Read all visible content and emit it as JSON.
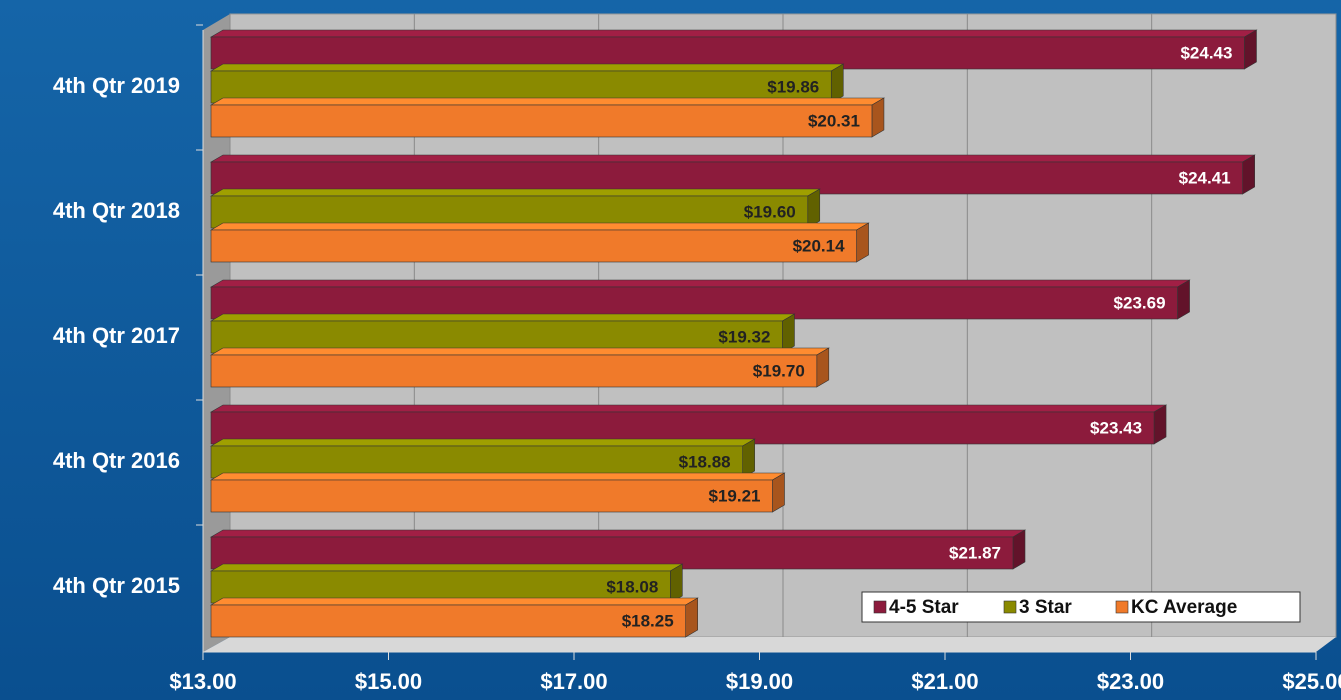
{
  "chart_data": {
    "type": "bar",
    "orientation": "horizontal",
    "categories": [
      "4th Qtr 2019",
      "4th Qtr 2018",
      "4th Qtr 2017",
      "4th Qtr 2016",
      "4th Qtr 2015"
    ],
    "series": [
      {
        "name": "4-5 Star",
        "color": "#8c1b3c",
        "values": [
          24.43,
          24.41,
          23.69,
          23.43,
          21.87
        ],
        "value_labels": [
          "$24.43",
          "$24.41",
          "$23.69",
          "$23.43",
          "$21.87"
        ]
      },
      {
        "name": "3 Star",
        "color": "#8a8a00",
        "values": [
          19.86,
          19.6,
          19.32,
          18.88,
          18.08
        ],
        "value_labels": [
          "$19.86",
          "$19.60",
          "$19.32",
          "$18.88",
          "$18.08"
        ]
      },
      {
        "name": "KC Average",
        "color": "#f07a2a",
        "values": [
          20.31,
          20.14,
          19.7,
          19.21,
          18.25
        ],
        "value_labels": [
          "$20.31",
          "$20.14",
          "$19.70",
          "$19.21",
          "$18.25"
        ]
      }
    ],
    "xlim": [
      13,
      25
    ],
    "xticks": [
      {
        "value": 13,
        "label": "$13.00"
      },
      {
        "value": 15,
        "label": "$15.00"
      },
      {
        "value": 17,
        "label": "$17.00"
      },
      {
        "value": 19,
        "label": "$19.00"
      },
      {
        "value": 21,
        "label": "$21.00"
      },
      {
        "value": 23,
        "label": "$23.00"
      },
      {
        "value": 25,
        "label": "$25.00"
      }
    ],
    "grid": true,
    "legend": "bottom-right"
  }
}
